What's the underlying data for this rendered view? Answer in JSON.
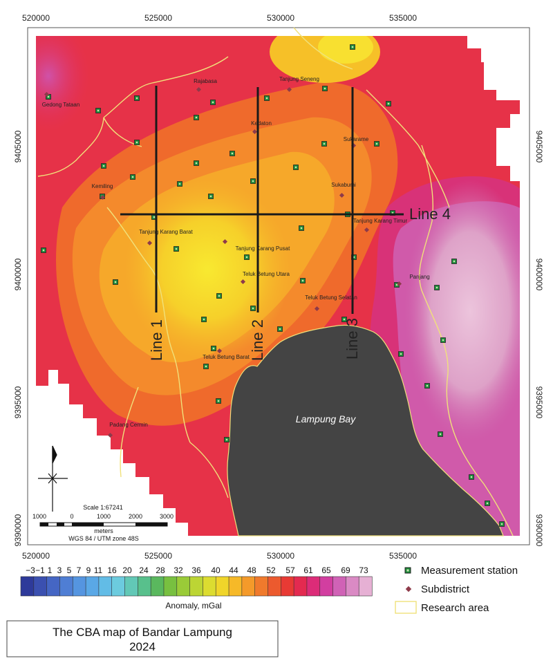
{
  "map": {
    "x_ticks": [
      "520000",
      "525000",
      "530000",
      "535000"
    ],
    "y_ticks": [
      "9405000",
      "9400000",
      "9395000",
      "9390000"
    ],
    "bay_label": "Lampung Bay",
    "lines": [
      {
        "label": "Line 1"
      },
      {
        "label": "Line 2"
      },
      {
        "label": "Line 3"
      },
      {
        "label": "Line 4"
      }
    ],
    "subdistricts": [
      "Rajabasa",
      "Tanjung Seneng",
      "Gedong Tataan",
      "Kedaton",
      "Sukarame",
      "Kemiling",
      "Sukabumi",
      "Tanjung Karang Barat",
      "Tanjung Karang Timur",
      "Tanjung Karang Pusat",
      "Panjang",
      "Teluk Betung Utara",
      "Teluk Betung Selatan",
      "Teluk Betung Barat",
      "Padang Cermin"
    ],
    "scale": {
      "text": "Scale 1:67241",
      "ticks": [
        "1000",
        "0",
        "1000",
        "2000",
        "3000"
      ],
      "unit": "meters",
      "crs": "WGS 84 / UTM zone 48S"
    }
  },
  "colorbar": {
    "labels": [
      "−3",
      "−1",
      "1",
      "3",
      "5",
      "7",
      "9",
      "11",
      "16",
      "20",
      "24",
      "28",
      "32",
      "36",
      "40",
      "44",
      "48",
      "52",
      "57",
      "61",
      "65",
      "69",
      "73"
    ],
    "title": "Anomaly, mGal",
    "colors": [
      "#2e3a9a",
      "#3b50b0",
      "#4566c4",
      "#4f7ed4",
      "#5595e0",
      "#5aa8e6",
      "#62bce6",
      "#6ccbde",
      "#62c8b6",
      "#58c08c",
      "#5ab85e",
      "#78c040",
      "#9acb38",
      "#bcd534",
      "#dcdc30",
      "#f0d52a",
      "#f6b928",
      "#f49a2a",
      "#f07a2c",
      "#ec5a2e",
      "#e83a34",
      "#e32a50",
      "#dc2c78",
      "#d23ea0",
      "#d062b6",
      "#da8ac4",
      "#e6b0d4"
    ]
  },
  "legend": {
    "station": "Measurement station",
    "subdistrict": "Subdistrict",
    "research": "Research area"
  },
  "title_box": {
    "line1": "The CBA map of Bandar Lampung",
    "line2": "2024"
  }
}
